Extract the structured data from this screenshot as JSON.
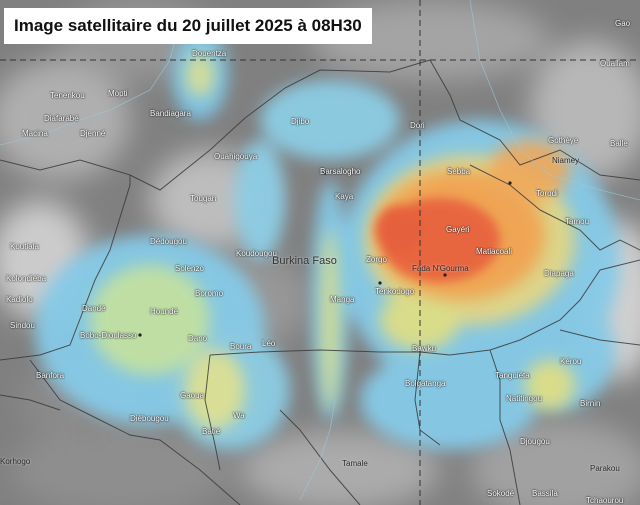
{
  "title": "Image satellitaire du 20 juillet 2025 à 08H30",
  "country_label": "Burkina Faso",
  "places": [
    {
      "name": "Douentza",
      "kind": "place"
    },
    {
      "name": "Tenenkou",
      "kind": "place"
    },
    {
      "name": "Mopti",
      "kind": "place"
    },
    {
      "name": "Diafarabé",
      "kind": "place"
    },
    {
      "name": "Macina",
      "kind": "place"
    },
    {
      "name": "Djenné",
      "kind": "place"
    },
    {
      "name": "Bandiagara",
      "kind": "place"
    },
    {
      "name": "Djibo",
      "kind": "place"
    },
    {
      "name": "Dori",
      "kind": "place"
    },
    {
      "name": "Ouahigouya",
      "kind": "place"
    },
    {
      "name": "Barsalogho",
      "kind": "place"
    },
    {
      "name": "Tougan",
      "kind": "place"
    },
    {
      "name": "Kaya",
      "kind": "place"
    },
    {
      "name": "Koutiala",
      "kind": "place"
    },
    {
      "name": "Dédougou",
      "kind": "place"
    },
    {
      "name": "Solenzo",
      "kind": "place"
    },
    {
      "name": "Sebba",
      "kind": "place"
    },
    {
      "name": "Gothèye",
      "kind": "place"
    },
    {
      "name": "Niamey",
      "kind": "city"
    },
    {
      "name": "Torodi",
      "kind": "place"
    },
    {
      "name": "Tamou",
      "kind": "place"
    },
    {
      "name": "Gayéri",
      "kind": "place"
    },
    {
      "name": "Matiacoali",
      "kind": "place"
    },
    {
      "name": "Fada N'Gourma",
      "kind": "city"
    },
    {
      "name": "Tenkodogo",
      "kind": "place"
    },
    {
      "name": "Zorgo",
      "kind": "place"
    },
    {
      "name": "Manga",
      "kind": "place"
    },
    {
      "name": "Diapaga",
      "kind": "place"
    },
    {
      "name": "Boromo",
      "kind": "place"
    },
    {
      "name": "Koudougou",
      "kind": "place"
    },
    {
      "name": "Dano",
      "kind": "place"
    },
    {
      "name": "Houndé",
      "kind": "place"
    },
    {
      "name": "Dandé",
      "kind": "place"
    },
    {
      "name": "Bobo-Dioulasso",
      "kind": "place"
    },
    {
      "name": "Sindou",
      "kind": "place"
    },
    {
      "name": "Banfora",
      "kind": "place"
    },
    {
      "name": "Kadiolo",
      "kind": "place"
    },
    {
      "name": "Kolondièba",
      "kind": "place"
    },
    {
      "name": "Boura",
      "kind": "place"
    },
    {
      "name": "Léo",
      "kind": "place"
    },
    {
      "name": "Diébougou",
      "kind": "place"
    },
    {
      "name": "Gaoua",
      "kind": "place"
    },
    {
      "name": "Batié",
      "kind": "place"
    },
    {
      "name": "Wa",
      "kind": "place"
    },
    {
      "name": "Bawku",
      "kind": "place"
    },
    {
      "name": "Bolgatanga",
      "kind": "place"
    },
    {
      "name": "Tanguiéta",
      "kind": "place"
    },
    {
      "name": "Natitingou",
      "kind": "place"
    },
    {
      "name": "Djougou",
      "kind": "place"
    },
    {
      "name": "Kérou",
      "kind": "place"
    },
    {
      "name": "Birnin",
      "kind": "place"
    },
    {
      "name": "Tamale",
      "kind": "city"
    },
    {
      "name": "Korhogo",
      "kind": "city"
    },
    {
      "name": "Sokodé",
      "kind": "place"
    },
    {
      "name": "Bassila",
      "kind": "place"
    },
    {
      "name": "Parakou",
      "kind": "city"
    },
    {
      "name": "Tchaourou",
      "kind": "place"
    },
    {
      "name": "Ouallam",
      "kind": "place"
    },
    {
      "name": "Balle",
      "kind": "place"
    },
    {
      "name": "Gao",
      "kind": "place"
    }
  ],
  "colors": {
    "cloud_gray": "#8a8a8a",
    "rain_light": "#7ec8ea",
    "rain_moderate": "#e8e37a",
    "rain_heavy": "#f08a4a",
    "rain_intense": "#e8503a",
    "border": "#3a3a3a"
  }
}
